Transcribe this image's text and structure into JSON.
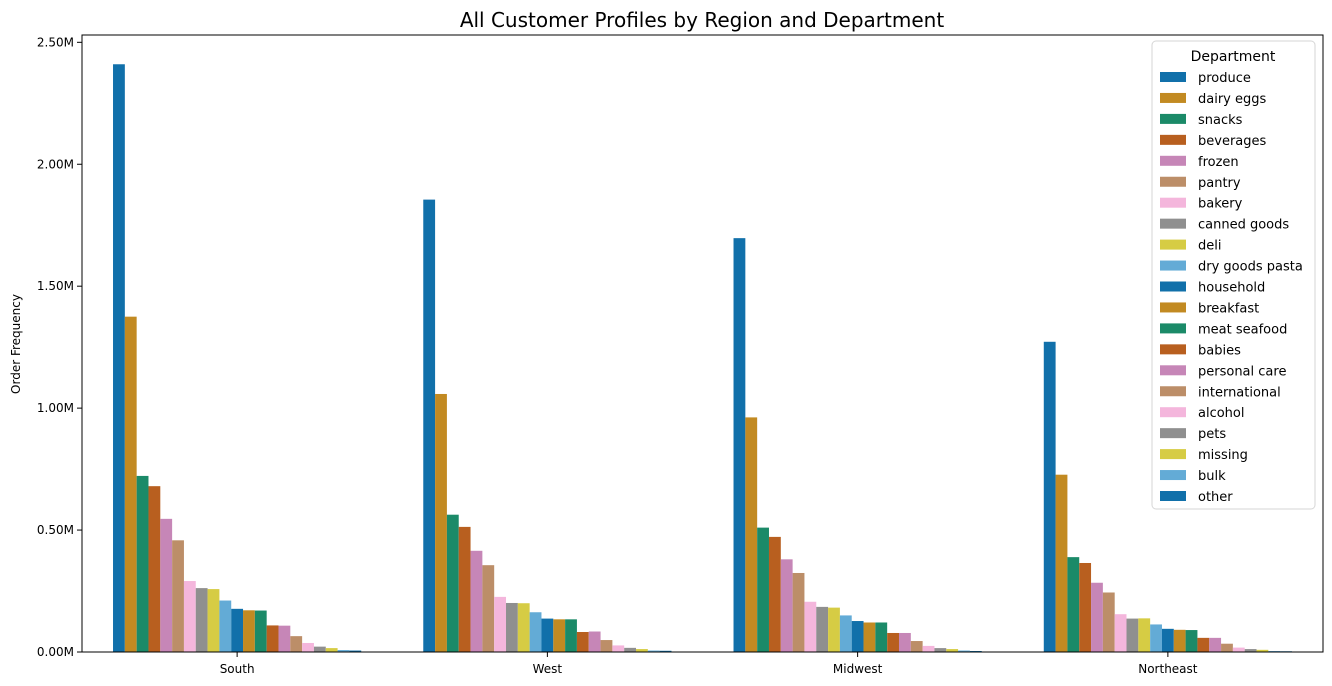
{
  "chart_data": {
    "type": "bar",
    "title": "All Customer Profiles by Region and Department",
    "xlabel": "",
    "ylabel": "Order Frequency",
    "ylim": [
      0,
      2530000
    ],
    "yticks": [
      0,
      500000,
      1000000,
      1500000,
      2000000,
      2500000
    ],
    "ytick_labels": [
      "0.00M",
      "0.50M",
      "1.00M",
      "1.50M",
      "2.00M",
      "2.50M"
    ],
    "categories": [
      "South",
      "West",
      "Midwest",
      "Northeast"
    ],
    "grid": false,
    "legend": {
      "title": "Department",
      "placement": "top-right"
    },
    "series": [
      {
        "name": "produce",
        "color": "#1170aa",
        "values": [
          2410000,
          1855000,
          1697000,
          1272000
        ]
      },
      {
        "name": "dairy eggs",
        "color": "#c28a22",
        "values": [
          1375000,
          1058000,
          962000,
          727000
        ]
      },
      {
        "name": "snacks",
        "color": "#1b8a68",
        "values": [
          722000,
          563000,
          510000,
          389000
        ]
      },
      {
        "name": "beverages",
        "color": "#b85f1f",
        "values": [
          680000,
          513000,
          472000,
          365000
        ]
      },
      {
        "name": "frozen",
        "color": "#c686b7",
        "values": [
          546000,
          415000,
          380000,
          284000
        ]
      },
      {
        "name": "pantry",
        "color": "#bc8e68",
        "values": [
          458000,
          356000,
          324000,
          244000
        ]
      },
      {
        "name": "bakery",
        "color": "#f4b6dc",
        "values": [
          291000,
          226000,
          206000,
          155000
        ]
      },
      {
        "name": "canned goods",
        "color": "#8f8f8f",
        "values": [
          262000,
          201000,
          185000,
          137000
        ]
      },
      {
        "name": "deli",
        "color": "#d6cc44",
        "values": [
          258000,
          200000,
          182000,
          138000
        ]
      },
      {
        "name": "dry goods pasta",
        "color": "#63abd6",
        "values": [
          211000,
          163000,
          150000,
          113000
        ]
      },
      {
        "name": "household",
        "color": "#1170aa",
        "values": [
          177000,
          137000,
          127000,
          95000
        ]
      },
      {
        "name": "breakfast",
        "color": "#c28a22",
        "values": [
          171000,
          134000,
          121000,
          91000
        ]
      },
      {
        "name": "meat seafood",
        "color": "#1b8a68",
        "values": [
          170000,
          134000,
          121000,
          90000
        ]
      },
      {
        "name": "babies",
        "color": "#b85f1f",
        "values": [
          109000,
          82000,
          78000,
          58000
        ]
      },
      {
        "name": "personal care",
        "color": "#c686b7",
        "values": [
          108000,
          84000,
          78000,
          58000
        ]
      },
      {
        "name": "international",
        "color": "#bc8e68",
        "values": [
          65000,
          49000,
          45000,
          34000
        ]
      },
      {
        "name": "alcohol",
        "color": "#f4b6dc",
        "values": [
          37000,
          27000,
          25000,
          18000
        ]
      },
      {
        "name": "pets",
        "color": "#8f8f8f",
        "values": [
          22000,
          17000,
          16000,
          12000
        ]
      },
      {
        "name": "missing",
        "color": "#d6cc44",
        "values": [
          16000,
          12000,
          12000,
          9000
        ]
      },
      {
        "name": "bulk",
        "color": "#63abd6",
        "values": [
          8000,
          6000,
          6000,
          4000
        ]
      },
      {
        "name": "other",
        "color": "#1170aa",
        "values": [
          6000,
          5000,
          4000,
          3000
        ]
      }
    ]
  }
}
